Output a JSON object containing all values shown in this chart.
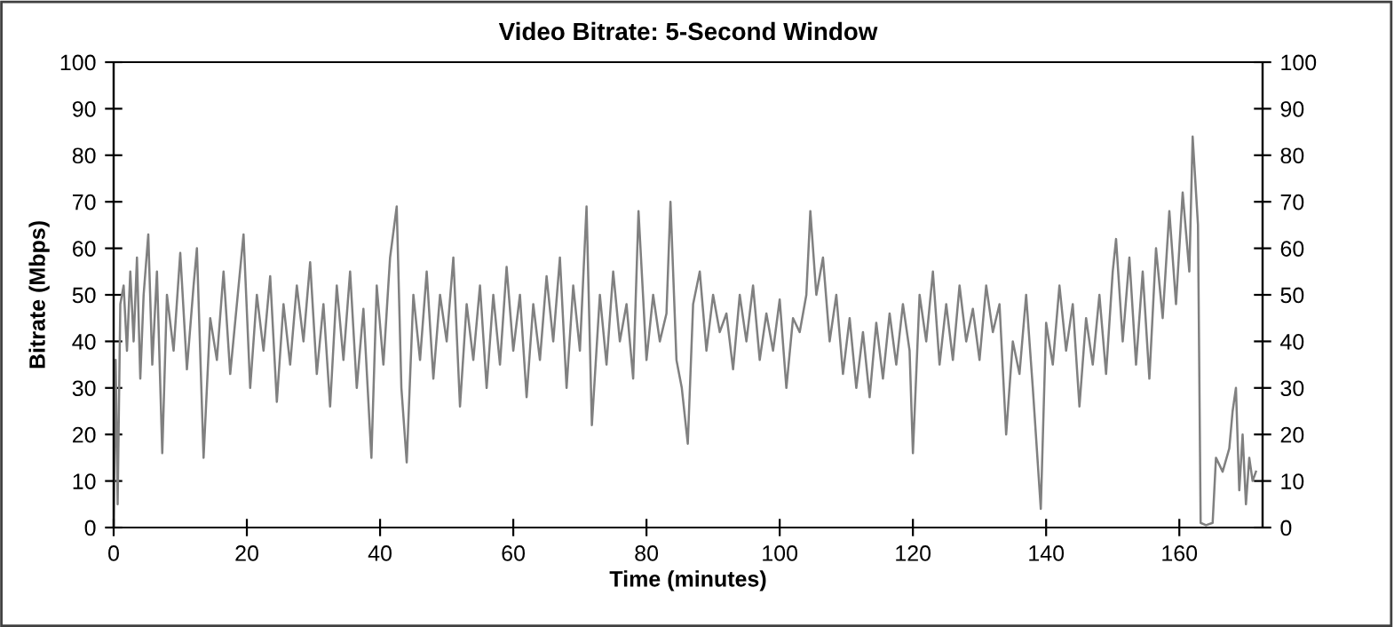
{
  "chart_data": {
    "type": "line",
    "title": "Video Bitrate: 5-Second Window",
    "xlabel": "Time (minutes)",
    "ylabel": "Bitrate (Mbps)",
    "xlim": [
      0,
      172.5
    ],
    "xticks": [
      0,
      20,
      40,
      60,
      80,
      100,
      120,
      140,
      160
    ],
    "ylim": [
      0,
      100
    ],
    "yticks": [
      0,
      10,
      20,
      30,
      40,
      50,
      60,
      70,
      80,
      90,
      100
    ],
    "y2lim": [
      0,
      100
    ],
    "y2ticks": [
      0,
      10,
      20,
      30,
      40,
      50,
      60,
      70,
      80,
      90,
      100
    ],
    "grid": false,
    "legend": false,
    "marker": "none",
    "line_style": "solid",
    "series": [
      {
        "color": "#808080",
        "x": [
          0,
          0.3,
          0.6,
          1,
          1.5,
          2,
          2.5,
          3,
          3.5,
          4,
          4.5,
          5.2,
          5.8,
          6.5,
          7.3,
          8,
          9,
          10,
          11,
          12,
          12.5,
          13.5,
          14.5,
          15.5,
          16.5,
          17.5,
          18.5,
          19.5,
          20.5,
          21.5,
          22.5,
          23.5,
          24.5,
          25.5,
          26.5,
          27.5,
          28.5,
          29.5,
          30.5,
          31.5,
          32.5,
          33.5,
          34.5,
          35.5,
          36.5,
          37.5,
          38.7,
          39.5,
          40.5,
          41.5,
          42.5,
          43.2,
          44,
          45,
          46,
          47,
          48,
          49,
          50,
          51,
          52,
          53,
          54,
          55,
          56,
          57,
          58,
          59,
          60,
          61,
          62,
          63,
          64,
          65,
          66,
          67,
          68,
          69,
          70,
          71,
          71.8,
          73,
          74,
          75,
          76,
          77,
          78,
          78.8,
          80,
          81,
          82,
          83,
          83.6,
          84.5,
          85.3,
          86.2,
          87,
          88,
          89,
          90,
          91,
          92,
          93,
          94,
          95,
          96,
          97,
          98,
          99,
          100,
          101,
          102,
          103,
          104,
          104.6,
          105.5,
          106.5,
          107.5,
          108.5,
          109.5,
          110.5,
          111.5,
          112.5,
          113.5,
          114.5,
          115.5,
          116.5,
          117.5,
          118.5,
          119.5,
          120,
          121,
          122,
          123,
          124,
          125,
          126,
          127,
          128,
          129,
          130,
          131,
          132,
          133,
          134,
          135,
          136,
          137,
          138,
          139.2,
          140,
          141,
          142,
          143,
          144,
          145,
          146,
          147,
          148,
          149,
          150,
          150.5,
          151.5,
          152.5,
          153.5,
          154.5,
          155.5,
          156.5,
          157.5,
          158.5,
          159.5,
          160.5,
          161.5,
          162,
          162.8,
          163.2,
          164,
          165,
          165.5,
          166.5,
          167.5,
          168,
          168.5,
          169,
          169.5,
          170,
          170.5,
          171,
          171.5
        ],
        "values": [
          0,
          36,
          5,
          48,
          52,
          38,
          55,
          40,
          58,
          32,
          50,
          63,
          35,
          55,
          16,
          50,
          38,
          59,
          34,
          52,
          60,
          15,
          45,
          36,
          55,
          33,
          48,
          63,
          30,
          50,
          38,
          54,
          27,
          48,
          35,
          52,
          40,
          57,
          33,
          48,
          26,
          52,
          36,
          55,
          30,
          47,
          15,
          52,
          35,
          58,
          69,
          30,
          14,
          50,
          36,
          55,
          32,
          50,
          40,
          58,
          26,
          48,
          36,
          52,
          30,
          50,
          35,
          56,
          38,
          50,
          28,
          48,
          36,
          54,
          40,
          58,
          30,
          52,
          38,
          69,
          22,
          50,
          35,
          55,
          40,
          48,
          32,
          68,
          36,
          50,
          40,
          46,
          70,
          36,
          30,
          18,
          48,
          55,
          38,
          50,
          42,
          46,
          34,
          50,
          40,
          52,
          36,
          46,
          38,
          49,
          30,
          45,
          42,
          50,
          68,
          50,
          58,
          40,
          50,
          33,
          45,
          30,
          42,
          28,
          44,
          32,
          46,
          35,
          48,
          38,
          16,
          50,
          40,
          55,
          35,
          48,
          36,
          52,
          40,
          47,
          36,
          52,
          42,
          48,
          20,
          40,
          33,
          50,
          30,
          4,
          44,
          35,
          52,
          38,
          48,
          26,
          45,
          35,
          50,
          33,
          55,
          62,
          40,
          58,
          35,
          55,
          32,
          60,
          45,
          68,
          48,
          72,
          55,
          84,
          65,
          1,
          0.5,
          1,
          15,
          12,
          17,
          25,
          30,
          8,
          20,
          5,
          15,
          10,
          12
        ]
      }
    ]
  }
}
